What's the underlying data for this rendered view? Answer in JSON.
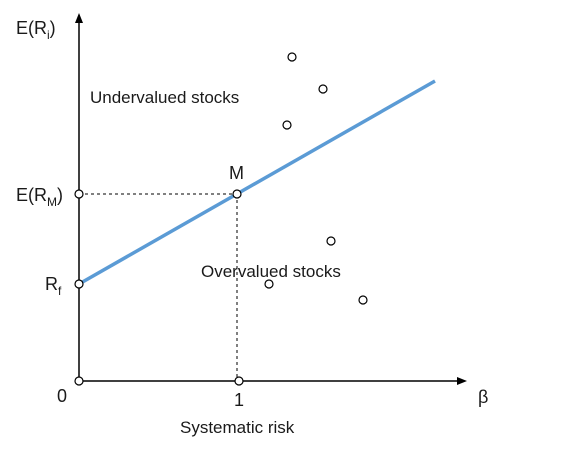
{
  "axes": {
    "y_label_prefix": "E(R",
    "y_label_sub": "i",
    "y_label_suffix": ")",
    "x_label": "β",
    "x_caption": "Systematic risk"
  },
  "ticks": {
    "origin": "0",
    "beta_one": "1",
    "market_return_prefix": "E(R",
    "market_return_sub": "M",
    "market_return_suffix": ")",
    "risk_free_prefix": "R",
    "risk_free_sub": "f"
  },
  "market_point_label": "M",
  "regions": {
    "above": "Undervalued stocks",
    "below": "Overvalued stocks"
  },
  "colors": {
    "sml_line": "#5b9bd5",
    "axis": "#000000",
    "text": "#1a1a1a"
  }
}
